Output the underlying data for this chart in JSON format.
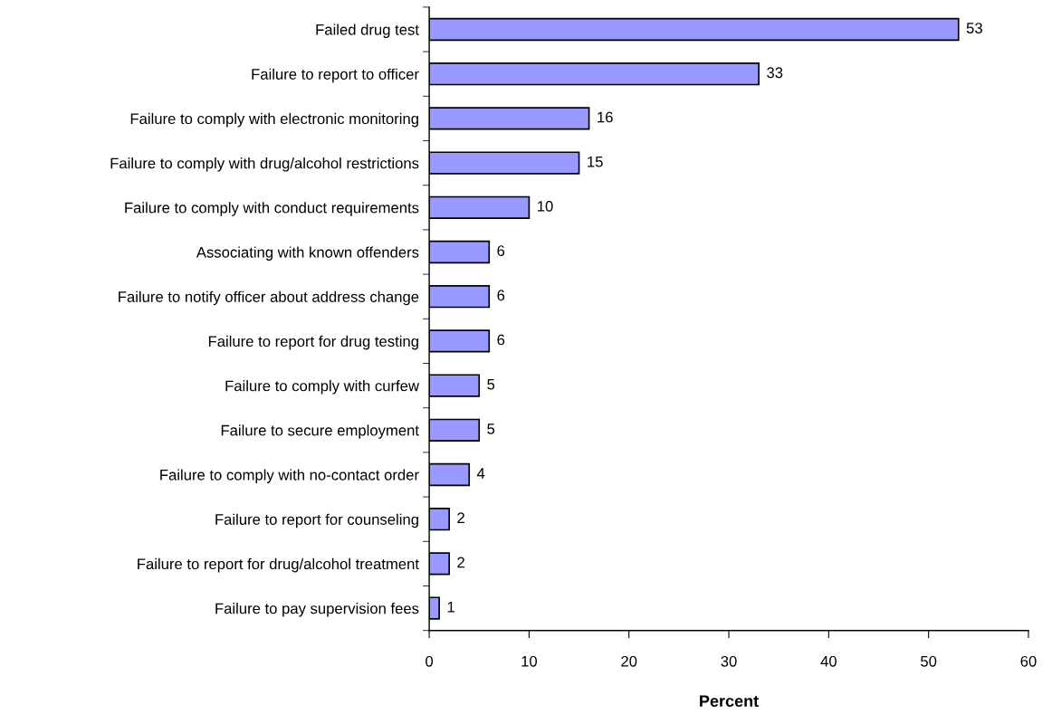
{
  "chart_data": {
    "type": "bar",
    "orientation": "horizontal",
    "categories": [
      "Failed drug test",
      "Failure to report to officer",
      "Failure to comply with electronic monitoring",
      "Failure to comply with drug/alcohol restrictions",
      "Failure to comply with conduct requirements",
      "Associating with known offenders",
      "Failure to notify officer about address change",
      "Failure to report for drug testing",
      "Failure to comply with curfew",
      "Failure to secure employment",
      "Failure to comply with no-contact order",
      "Failure to report for counseling",
      "Failure to report for drug/alcohol treatment",
      "Failure to pay supervision fees"
    ],
    "values": [
      53,
      33,
      16,
      15,
      10,
      6,
      6,
      6,
      5,
      5,
      4,
      2,
      2,
      1
    ],
    "color": "#9999ff",
    "xlabel": "Percent",
    "xlim": [
      0,
      60
    ],
    "xticks": [
      0,
      10,
      20,
      30,
      40,
      50,
      60
    ],
    "data_labels": true
  }
}
